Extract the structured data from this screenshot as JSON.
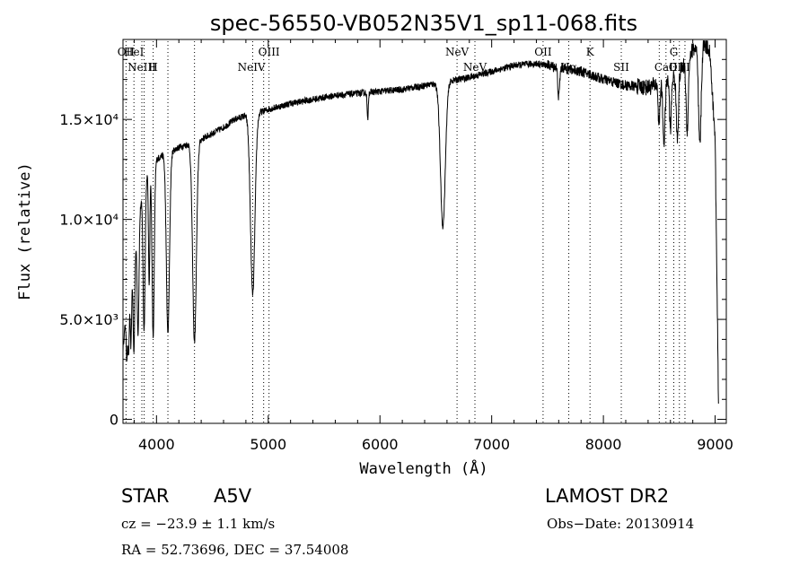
{
  "chart_data": {
    "type": "line",
    "title": "spec-56550-VB052N35V1_sp11-068.fits",
    "xlabel": "Wavelength (Å)",
    "ylabel": "Flux (relative)",
    "xlim": [
      3700,
      9100
    ],
    "ylim": [
      -200,
      19000
    ],
    "grid": false,
    "x_ticks": [
      {
        "value": 4000,
        "label": "4000"
      },
      {
        "value": 5000,
        "label": "5000"
      },
      {
        "value": 6000,
        "label": "6000"
      },
      {
        "value": 7000,
        "label": "7000"
      },
      {
        "value": 8000,
        "label": "8000"
      },
      {
        "value": 9000,
        "label": "9000"
      }
    ],
    "y_ticks": [
      {
        "value": 0,
        "label": "0"
      },
      {
        "value": 5000,
        "label": "5.0×10³"
      },
      {
        "value": 10000,
        "label": "1.0×10⁴"
      },
      {
        "value": 15000,
        "label": "1.5×10⁴"
      }
    ],
    "continuum": [
      [
        3700,
        3500
      ],
      [
        3730,
        5500
      ],
      [
        3760,
        6500
      ],
      [
        3800,
        8200
      ],
      [
        3850,
        10500
      ],
      [
        3900,
        12000
      ],
      [
        3950,
        12800
      ],
      [
        4000,
        13000
      ],
      [
        4050,
        13200
      ],
      [
        4100,
        13300
      ],
      [
        4200,
        13600
      ],
      [
        4300,
        13800
      ],
      [
        4400,
        14000
      ],
      [
        4500,
        14300
      ],
      [
        4600,
        14600
      ],
      [
        4700,
        15000
      ],
      [
        4800,
        15200
      ],
      [
        4900,
        15300
      ],
      [
        5000,
        15500
      ],
      [
        5200,
        15800
      ],
      [
        5400,
        16000
      ],
      [
        5600,
        16200
      ],
      [
        5800,
        16300
      ],
      [
        6000,
        16400
      ],
      [
        6200,
        16500
      ],
      [
        6400,
        16700
      ],
      [
        6600,
        16900
      ],
      [
        6800,
        17100
      ],
      [
        7000,
        17400
      ],
      [
        7200,
        17700
      ],
      [
        7400,
        17800
      ],
      [
        7600,
        17600
      ],
      [
        7800,
        17400
      ],
      [
        8000,
        17000
      ],
      [
        8200,
        16700
      ],
      [
        8400,
        16600
      ],
      [
        8500,
        16800
      ],
      [
        8600,
        17000
      ],
      [
        8700,
        17500
      ],
      [
        8800,
        18500
      ],
      [
        8900,
        18800
      ],
      [
        8950,
        18500
      ],
      [
        9000,
        14000
      ],
      [
        9030,
        1000
      ]
    ],
    "absorption_lines": [
      {
        "x": 3734,
        "depth": 2500,
        "width": 6
      },
      {
        "x": 3750,
        "depth": 3000,
        "width": 6
      },
      {
        "x": 3771,
        "depth": 3300,
        "width": 6
      },
      {
        "x": 3798,
        "depth": 4800,
        "width": 7
      },
      {
        "x": 3835,
        "depth": 5500,
        "width": 8
      },
      {
        "x": 3889,
        "depth": 7200,
        "width": 9
      },
      {
        "x": 3934,
        "depth": 5800,
        "width": 6
      },
      {
        "x": 3970,
        "depth": 8800,
        "width": 10
      },
      {
        "x": 4102,
        "depth": 9000,
        "width": 14
      },
      {
        "x": 4340,
        "depth": 10000,
        "width": 17
      },
      {
        "x": 4861,
        "depth": 9000,
        "width": 20
      },
      {
        "x": 5890,
        "depth": 1400,
        "width": 5
      },
      {
        "x": 6563,
        "depth": 7200,
        "width": 22
      },
      {
        "x": 7600,
        "depth": 1500,
        "width": 8
      },
      {
        "x": 8498,
        "depth": 2000,
        "width": 8
      },
      {
        "x": 8542,
        "depth": 3000,
        "width": 10
      },
      {
        "x": 8600,
        "depth": 2500,
        "width": 8
      },
      {
        "x": 8662,
        "depth": 3200,
        "width": 10
      },
      {
        "x": 8750,
        "depth": 3500,
        "width": 10
      },
      {
        "x": 8863,
        "depth": 5000,
        "width": 12
      }
    ],
    "line_markers": [
      {
        "x": 3727,
        "label": "OII",
        "row": 0
      },
      {
        "x": 3798,
        "label": "HeI",
        "row": 0
      },
      {
        "x": 3869,
        "label": "NeIII",
        "row": 1
      },
      {
        "x": 3889,
        "label": "",
        "row": 1
      },
      {
        "x": 3970,
        "label": "H",
        "row": 1
      },
      {
        "x": 4102,
        "label": "",
        "row": 0
      },
      {
        "x": 4340,
        "label": "",
        "row": 0
      },
      {
        "x": 4861,
        "label": "",
        "row": 0
      },
      {
        "x": 4959,
        "label": "",
        "row": 0
      },
      {
        "x": 4861,
        "label": "NeIV",
        "row": 1,
        "label_x": 4850
      },
      {
        "x": 5007,
        "label": "OIII",
        "row": 0
      },
      {
        "x": 6690,
        "label": "NeV",
        "row": 0
      },
      {
        "x": 6850,
        "label": "NeV",
        "row": 1
      },
      {
        "x": 7460,
        "label": "OII",
        "row": 0
      },
      {
        "x": 7690,
        "label": "Hα",
        "row": 1
      },
      {
        "x": 7880,
        "label": "K",
        "row": 0
      },
      {
        "x": 8160,
        "label": "SII",
        "row": 1
      },
      {
        "x": 8500,
        "label": "",
        "row": 1
      },
      {
        "x": 8560,
        "label": "CaII",
        "row": 1
      },
      {
        "x": 8630,
        "label": "G",
        "row": 0
      },
      {
        "x": 8680,
        "label": "OIII",
        "row": 1
      },
      {
        "x": 8730,
        "label": "",
        "row": 1
      }
    ]
  },
  "info": {
    "object_class": "STAR",
    "spectral_type": "A5V",
    "survey": "LAMOST DR2",
    "cz": "cz = −23.9 ± 1.1 km/s",
    "obs_date": "Obs−Date: 20130914",
    "coords": "RA =  52.73696, DEC =  37.54008"
  }
}
